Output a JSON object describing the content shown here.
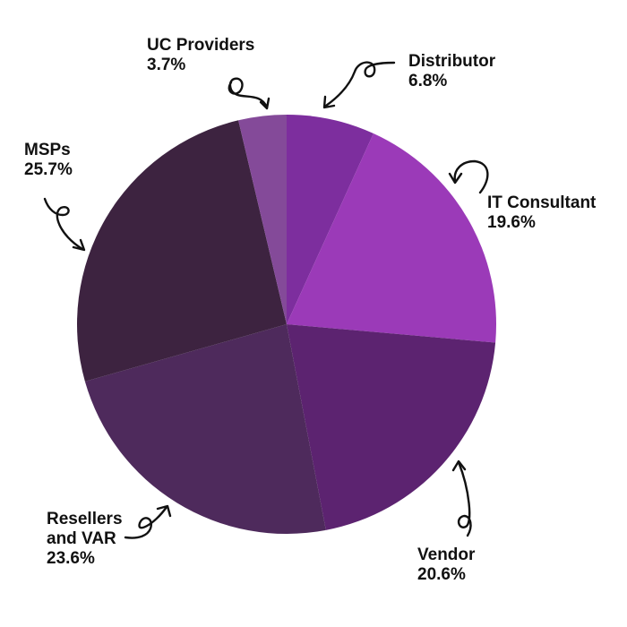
{
  "chart_data": {
    "type": "pie",
    "title": "",
    "slices": [
      {
        "label": "Distributor",
        "value": 6.8,
        "value_label": "6.8%",
        "color": "#7d2e9e"
      },
      {
        "label": "IT Consultant",
        "value": 19.6,
        "value_label": "19.6%",
        "color": "#9b3ab8"
      },
      {
        "label": "Vendor",
        "value": 20.6,
        "value_label": "20.6%",
        "color": "#5c2370"
      },
      {
        "label": "Resellers and VAR",
        "value": 23.6,
        "value_label": "23.6%",
        "color": "#4e2a5c"
      },
      {
        "label": "MSPs",
        "value": 25.7,
        "value_label": "25.7%",
        "color": "#3d2340"
      },
      {
        "label": "UC Providers",
        "value": 3.7,
        "value_label": "3.7%",
        "color": "#844a99"
      }
    ],
    "labels_display": {
      "resellers_line1": "Resellers",
      "resellers_line2": "and VAR"
    }
  }
}
